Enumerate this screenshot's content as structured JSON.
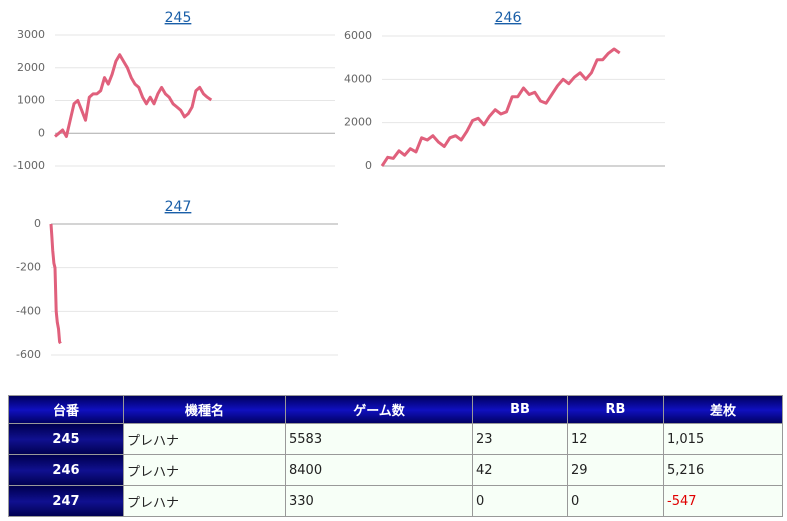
{
  "chart_data": [
    {
      "type": "line",
      "title": "245",
      "color": "#e0607c",
      "x": [
        0,
        136,
        272,
        408,
        544,
        680,
        816,
        952,
        1088,
        1224,
        1360,
        1496,
        1632,
        1768,
        1904,
        2040,
        2176,
        2312,
        2448,
        2584,
        2720,
        2856,
        2992,
        3128,
        3264,
        3400,
        3536,
        3672,
        3808,
        3944,
        4080,
        4216,
        4352,
        4488,
        4624,
        4760,
        4896,
        5032,
        5168,
        5304,
        5440,
        5583
      ],
      "values": [
        -100,
        0,
        100,
        -100,
        400,
        900,
        1000,
        700,
        400,
        1100,
        1200,
        1200,
        1300,
        1700,
        1500,
        1800,
        2200,
        2400,
        2200,
        2000,
        1700,
        1500,
        1400,
        1100,
        900,
        1100,
        900,
        1200,
        1400,
        1200,
        1100,
        900,
        800,
        700,
        500,
        600,
        800,
        1300,
        1400,
        1200,
        1100,
        1015
      ],
      "xlim": [
        0,
        10000
      ],
      "ylim": [
        -1000,
        3000
      ],
      "yticks": [
        -1000,
        0,
        1000,
        2000,
        3000
      ]
    },
    {
      "type": "line",
      "title": "246",
      "color": "#e0607c",
      "x": [
        0,
        200,
        400,
        600,
        800,
        1000,
        1200,
        1400,
        1600,
        1800,
        2000,
        2200,
        2400,
        2600,
        2800,
        3000,
        3200,
        3400,
        3600,
        3800,
        4000,
        4200,
        4400,
        4600,
        4800,
        5000,
        5200,
        5400,
        5600,
        5800,
        6000,
        6200,
        6400,
        6600,
        6800,
        7000,
        7200,
        7400,
        7600,
        7800,
        8000,
        8200,
        8400
      ],
      "values": [
        0,
        400,
        350,
        700,
        500,
        800,
        650,
        1300,
        1200,
        1400,
        1100,
        900,
        1300,
        1400,
        1200,
        1600,
        2100,
        2200,
        1900,
        2300,
        2600,
        2400,
        2500,
        3200,
        3200,
        3600,
        3300,
        3400,
        3000,
        2900,
        3300,
        3700,
        4000,
        3800,
        4100,
        4300,
        4000,
        4300,
        4900,
        4900,
        5200,
        5400,
        5216
      ],
      "xlim": [
        0,
        10000
      ],
      "ylim": [
        0,
        6000
      ],
      "yticks": [
        0,
        2000,
        4000,
        6000
      ]
    },
    {
      "type": "line",
      "title": "247",
      "color": "#e0607c",
      "x": [
        0,
        30,
        60,
        100,
        140,
        180,
        220,
        260,
        300,
        330
      ],
      "values": [
        0,
        -60,
        -120,
        -180,
        -200,
        -400,
        -450,
        -480,
        -540,
        -547
      ],
      "xlim": [
        0,
        10000
      ],
      "ylim": [
        -600,
        0
      ],
      "yticks": [
        -600,
        -400,
        -200,
        0
      ]
    }
  ],
  "table": {
    "header": [
      "台番",
      "機種名",
      "ゲーム数",
      "BB",
      "RB",
      "差枚"
    ],
    "rows": [
      [
        "245",
        "プレハナ",
        "5583",
        "23",
        "12",
        "1,015"
      ],
      [
        "246",
        "プレハナ",
        "8400",
        "42",
        "29",
        "5,216"
      ],
      [
        "247",
        "プレハナ",
        "330",
        "0",
        "0",
        "-547"
      ]
    ]
  }
}
